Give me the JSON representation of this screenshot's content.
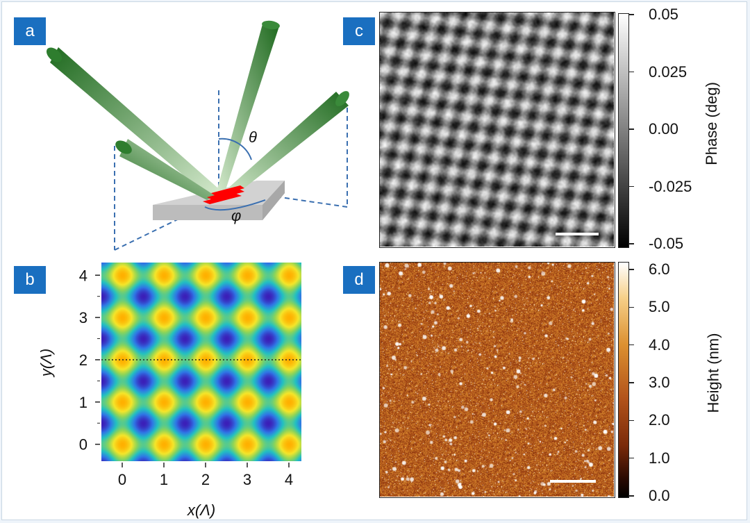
{
  "panels": {
    "a": {
      "label": "a",
      "theta": "θ",
      "phi": "φ"
    },
    "b": {
      "label": "b"
    },
    "c": {
      "label": "c"
    },
    "d": {
      "label": "d"
    }
  },
  "colors": {
    "panel_label_bg": "#1a6fc0",
    "beam": "#2e7d2e",
    "sample": "#c8c8c8",
    "pattern": "#ff0000",
    "guides": "#3a6fb0"
  },
  "chart_data": [
    {
      "panel": "b",
      "type": "heatmap",
      "xlabel": "x(Λ)",
      "ylabel": "y(Λ)",
      "xlim": [
        -0.5,
        4.3
      ],
      "ylim": [
        -0.4,
        4.3
      ],
      "xticks": [
        "0",
        "1",
        "2",
        "3",
        "4"
      ],
      "yticks": [
        "0",
        "1",
        "2",
        "3",
        "4"
      ],
      "maxima_x": [
        0,
        1,
        2,
        3,
        4
      ],
      "maxima_y": [
        0,
        1,
        2,
        3,
        4
      ],
      "reference_line_y": 2,
      "colormap": [
        "#3b1fb8",
        "#2f76e6",
        "#23c1c1",
        "#8bd45a",
        "#f5e62a",
        "#ffb000"
      ]
    },
    {
      "panel": "c",
      "type": "heatmap",
      "colorbar_title": "Phase (deg)",
      "colorbar_ticks": [
        "0.05",
        "0.025",
        "0.00",
        "-0.025",
        "-0.05"
      ],
      "clim": [
        -0.05,
        0.05
      ],
      "colormap": [
        "#000000",
        "#ffffff"
      ]
    },
    {
      "panel": "d",
      "type": "heatmap",
      "colorbar_title": "Height (nm)",
      "colorbar_ticks": [
        "6.0",
        "5.0",
        "4.0",
        "3.0",
        "2.0",
        "1.0",
        "0.0"
      ],
      "clim": [
        0.0,
        6.0
      ],
      "colormap": [
        "#000000",
        "#7a2a0a",
        "#b2531a",
        "#dc9030",
        "#f6d089",
        "#ffffff"
      ]
    }
  ]
}
